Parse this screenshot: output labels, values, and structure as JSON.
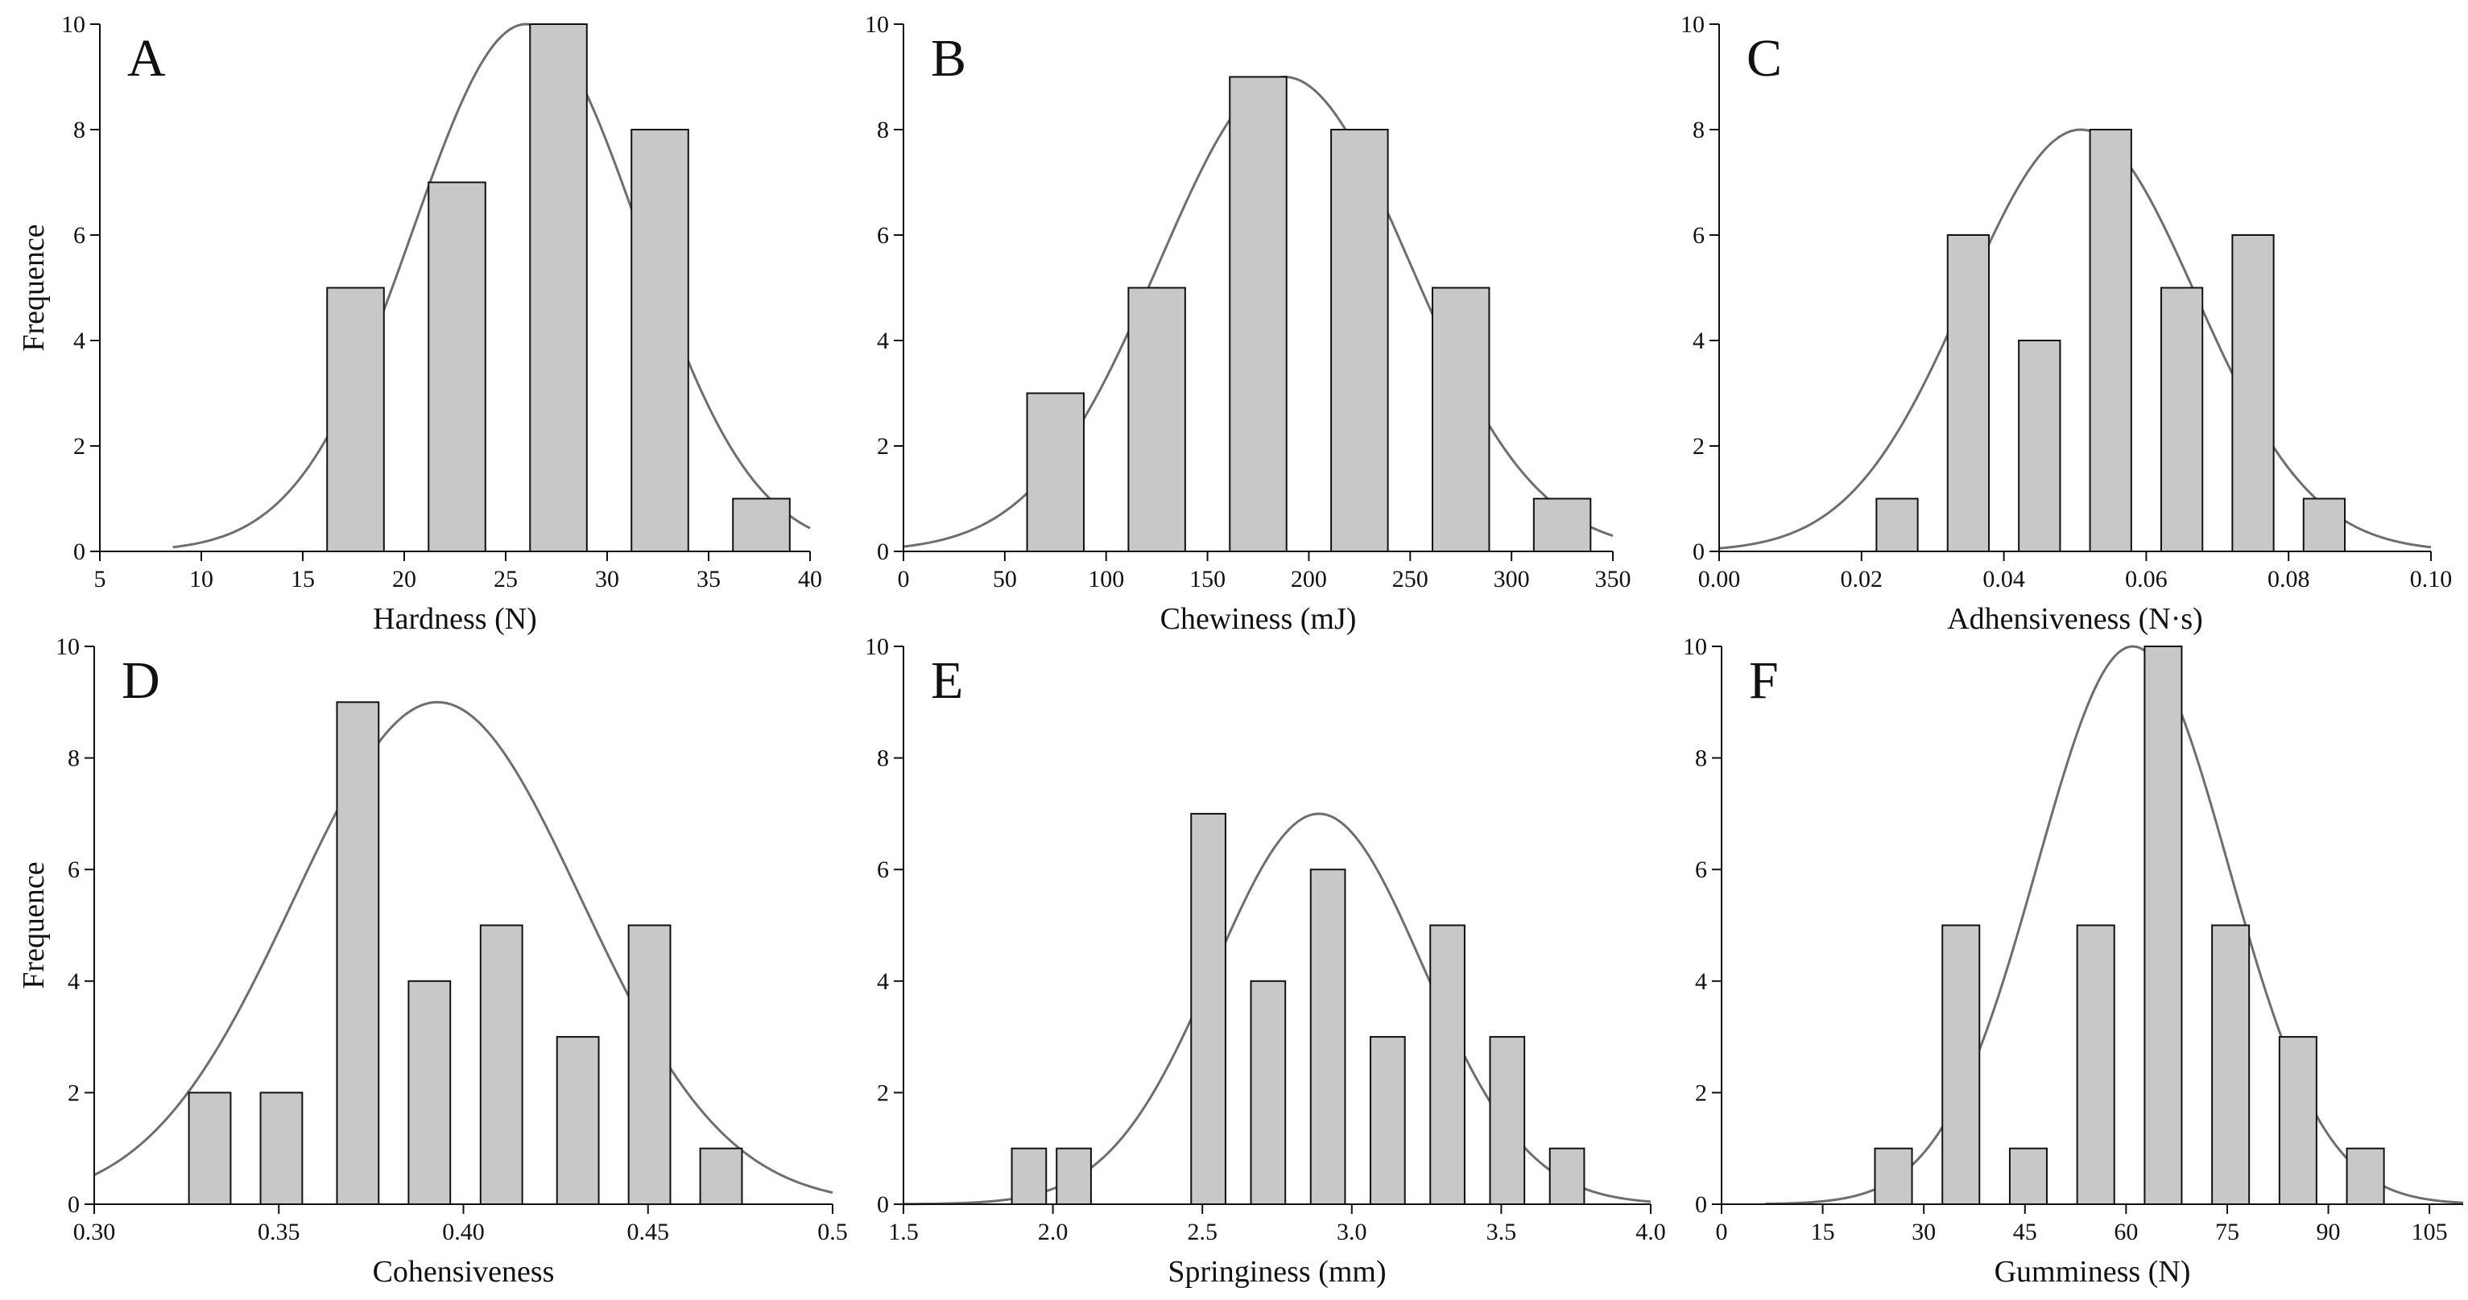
{
  "colors": {
    "bar_fill": "#c8c8c8",
    "bar_stroke": "#111111",
    "curve": "#6e6e6e",
    "axis": "#111111"
  },
  "chart_data": [
    {
      "type": "bar",
      "panel": "A",
      "title": "",
      "xlabel": "Hardness (N)",
      "ylabel": "Frequence",
      "xlim": [
        5,
        40
      ],
      "ylim": [
        0,
        10
      ],
      "xticks": [
        "5",
        "10",
        "15",
        "20",
        "25",
        "30",
        "35",
        "40"
      ],
      "yticks": [
        "0",
        "2",
        "4",
        "6",
        "8",
        "10"
      ],
      "bin_width": 2.8,
      "bins": [
        {
          "center": 17.6,
          "count": 5
        },
        {
          "center": 22.6,
          "count": 7
        },
        {
          "center": 27.6,
          "count": 10
        },
        {
          "center": 32.6,
          "count": 8
        },
        {
          "center": 37.6,
          "count": 1
        }
      ],
      "fit_curve": {
        "type": "normal",
        "mean": 26,
        "sd": 5.6,
        "peak": 10,
        "x_range": [
          8.6,
          40
        ]
      }
    },
    {
      "type": "bar",
      "panel": "B",
      "title": "",
      "xlabel": "Chewiness (mJ)",
      "ylabel": "",
      "xlim": [
        0,
        350
      ],
      "ylim": [
        0,
        10
      ],
      "xticks": [
        "0",
        "50",
        "100",
        "150",
        "200",
        "250",
        "300",
        "350"
      ],
      "yticks": [
        "0",
        "2",
        "4",
        "6",
        "8",
        "10"
      ],
      "bin_width": 28,
      "bins": [
        {
          "center": 75,
          "count": 3
        },
        {
          "center": 125,
          "count": 5
        },
        {
          "center": 175,
          "count": 9
        },
        {
          "center": 225,
          "count": 8
        },
        {
          "center": 275,
          "count": 5
        },
        {
          "center": 325,
          "count": 1
        }
      ],
      "fit_curve": {
        "type": "normal",
        "mean": 188,
        "sd": 62,
        "peak": 9,
        "x_range": [
          0,
          350
        ]
      }
    },
    {
      "type": "bar",
      "panel": "C",
      "title": "",
      "xlabel": "Adhensiveness (N·s)",
      "ylabel": "",
      "xlim": [
        0,
        0.1
      ],
      "ylim": [
        0,
        10
      ],
      "xticks": [
        "0.00",
        "0.02",
        "0.04",
        "0.06",
        "0.08",
        "0.10"
      ],
      "yticks": [
        "0",
        "2",
        "4",
        "6",
        "8",
        "10"
      ],
      "bin_width": 0.0058,
      "bins": [
        {
          "center": 0.025,
          "count": 1
        },
        {
          "center": 0.035,
          "count": 6
        },
        {
          "center": 0.045,
          "count": 4
        },
        {
          "center": 0.055,
          "count": 8
        },
        {
          "center": 0.065,
          "count": 5
        },
        {
          "center": 0.075,
          "count": 6
        },
        {
          "center": 0.085,
          "count": 1
        }
      ],
      "fit_curve": {
        "type": "normal",
        "mean": 0.0508,
        "sd": 0.0162,
        "peak": 8,
        "x_range": [
          0,
          0.1
        ]
      }
    },
    {
      "type": "bar",
      "panel": "D",
      "title": "",
      "xlabel": "Cohensiveness",
      "ylabel": "Frequence",
      "xlim": [
        0.3,
        0.5
      ],
      "ylim": [
        0,
        10
      ],
      "xticks": [
        "0.30",
        "0.35",
        "0.40",
        "0.45",
        "0.5"
      ],
      "yticks": [
        "0",
        "2",
        "4",
        "6",
        "8",
        "10"
      ],
      "bin_width": 0.0113,
      "bins": [
        {
          "center": 0.3313,
          "count": 2
        },
        {
          "center": 0.3507,
          "count": 2
        },
        {
          "center": 0.3714,
          "count": 9
        },
        {
          "center": 0.3908,
          "count": 4
        },
        {
          "center": 0.4103,
          "count": 5
        },
        {
          "center": 0.431,
          "count": 3
        },
        {
          "center": 0.4504,
          "count": 5
        },
        {
          "center": 0.4698,
          "count": 1
        }
      ],
      "fit_curve": {
        "type": "normal",
        "mean": 0.393,
        "sd": 0.039,
        "peak": 9,
        "x_range": [
          0.3,
          0.5
        ]
      }
    },
    {
      "type": "bar",
      "panel": "E",
      "title": "",
      "xlabel": "Springiness (mm)",
      "ylabel": "",
      "xlim": [
        1.5,
        4.0
      ],
      "ylim": [
        0,
        10
      ],
      "xticks": [
        "1.5",
        "2.0",
        "2.5",
        "3.0",
        "3.5",
        "4.0"
      ],
      "yticks": [
        "0",
        "2",
        "4",
        "6",
        "8",
        "10"
      ],
      "bin_width": 0.115,
      "bins": [
        {
          "center": 1.92,
          "count": 1
        },
        {
          "center": 2.07,
          "count": 1
        },
        {
          "center": 2.52,
          "count": 7
        },
        {
          "center": 2.72,
          "count": 4
        },
        {
          "center": 2.92,
          "count": 6
        },
        {
          "center": 3.12,
          "count": 3
        },
        {
          "center": 3.32,
          "count": 5
        },
        {
          "center": 3.52,
          "count": 3
        },
        {
          "center": 3.72,
          "count": 1
        }
      ],
      "fit_curve": {
        "type": "normal",
        "mean": 2.89,
        "sd": 0.35,
        "peak": 7,
        "x_range": [
          1.5,
          4.0
        ]
      }
    },
    {
      "type": "bar",
      "panel": "F",
      "title": "",
      "xlabel": "Gumminess (N)",
      "ylabel": "",
      "xlim": [
        0,
        110
      ],
      "ylim": [
        0,
        10
      ],
      "xticks": [
        "0",
        "15",
        "30",
        "45",
        "60",
        "75",
        "90",
        "105"
      ],
      "yticks": [
        "0",
        "2",
        "4",
        "6",
        "8",
        "10"
      ],
      "bin_width": 5.5,
      "bins": [
        {
          "center": 25.5,
          "count": 1
        },
        {
          "center": 35.5,
          "count": 5
        },
        {
          "center": 45.5,
          "count": 1
        },
        {
          "center": 55.5,
          "count": 5
        },
        {
          "center": 65.5,
          "count": 10
        },
        {
          "center": 75.5,
          "count": 5
        },
        {
          "center": 85.5,
          "count": 3
        },
        {
          "center": 95.5,
          "count": 1
        }
      ],
      "fit_curve": {
        "type": "normal",
        "mean": 61,
        "sd": 14.2,
        "peak": 10,
        "x_range": [
          6.5,
          110
        ]
      }
    }
  ]
}
